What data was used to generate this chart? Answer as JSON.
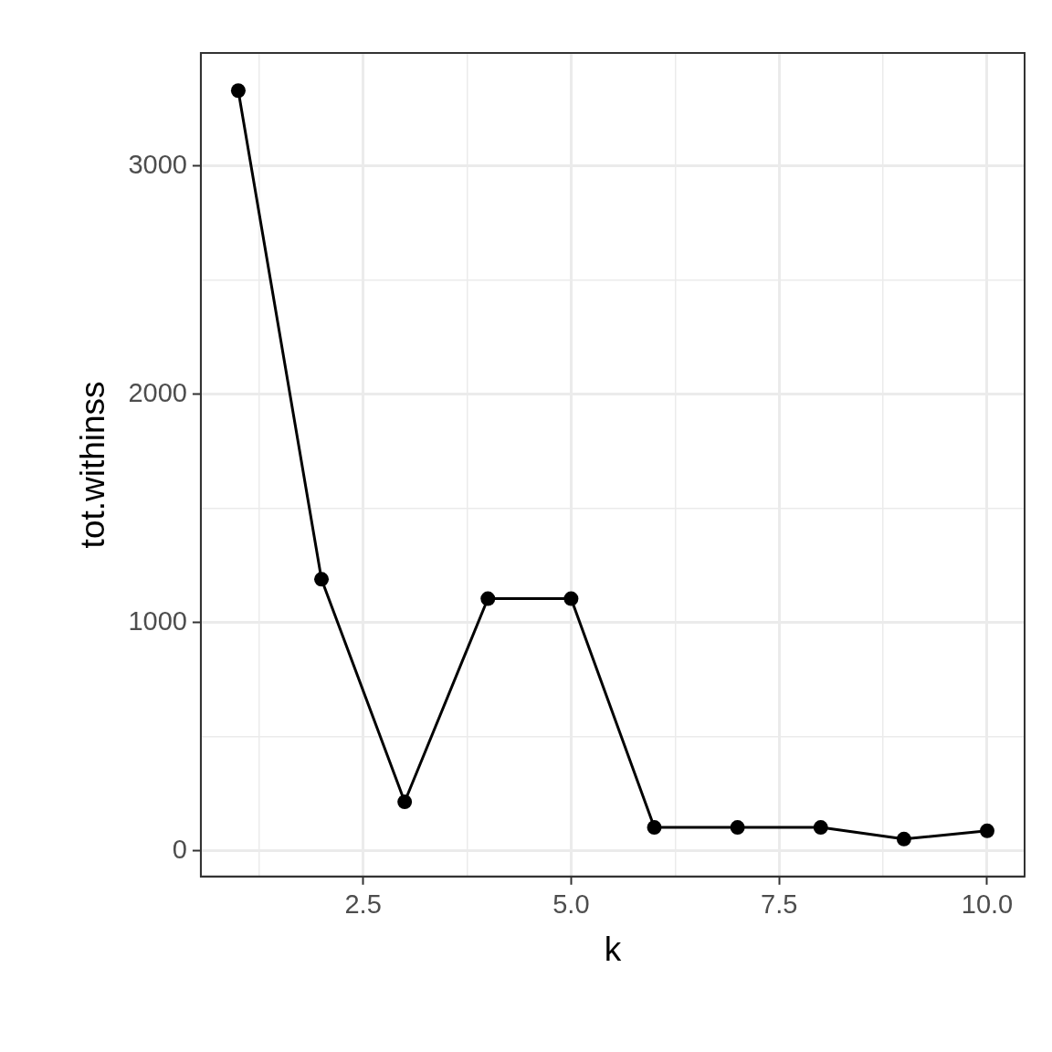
{
  "chart_data": {
    "type": "line",
    "xlabel": "k",
    "ylabel": "tot.withinss",
    "x": [
      1,
      2,
      3,
      4,
      5,
      6,
      7,
      8,
      9,
      10
    ],
    "series": [
      {
        "color": "#000000",
        "values": [
          3330,
          1190,
          215,
          1105,
          1105,
          103,
          103,
          103,
          52,
          88
        ]
      }
    ],
    "xlim": [
      0.55,
      10.45
    ],
    "xticks": [
      {
        "value": 1.25,
        "label": null
      },
      {
        "value": 2.5,
        "label": "2.5"
      },
      {
        "value": 3.75,
        "label": null
      },
      {
        "value": 5,
        "label": "5.0"
      },
      {
        "value": 6.25,
        "label": null
      },
      {
        "value": 7.5,
        "label": "7.5"
      },
      {
        "value": 8.75,
        "label": null
      },
      {
        "value": 10,
        "label": "10.0"
      }
    ],
    "ylim": [
      -112,
      3495
    ],
    "yticks": [
      0,
      {
        "value": 500,
        "label": null
      },
      1000,
      {
        "value": 1500,
        "label": null
      },
      2000,
      {
        "value": 2500,
        "label": null
      },
      3000
    ],
    "grid": true,
    "legend": false,
    "marker": "circle",
    "line_style": "solid"
  }
}
